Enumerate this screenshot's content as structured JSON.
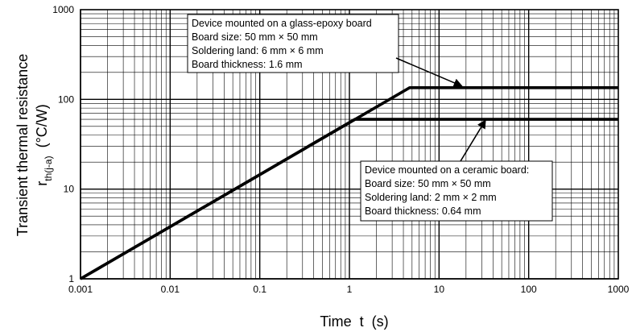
{
  "chart_data": {
    "type": "line",
    "x_scale": "log",
    "y_scale": "log",
    "xlim": [
      0.001,
      1000
    ],
    "ylim": [
      1,
      1000
    ],
    "grid": true,
    "xlabel": "Time  t  (s)",
    "ylabel": {
      "line1": "Transient thermal resistance",
      "main_symbol": "r",
      "subscript": "th(j-a)",
      "unit": "(°C/W)"
    },
    "x_tick_labels": [
      "0.001",
      "0.01",
      "0.1",
      "1",
      "10",
      "100",
      "1000"
    ],
    "y_tick_labels": [
      "1",
      "10",
      "100",
      "1000"
    ],
    "series": [
      {
        "x": [
          0.001,
          4.7,
          1000
        ],
        "y": [
          1,
          135,
          135
        ]
      },
      {
        "x": [
          0.001,
          1.15,
          1000
        ],
        "y": [
          1,
          60,
          60
        ]
      }
    ],
    "annotations": [
      {
        "lines": [
          "Device mounted on a glass-epoxy board",
          "Board size: 50 mm  ×  50 mm",
          "Soldering land: 6 mm  ×  6 mm",
          "Board thickness: 1.6 mm"
        ],
        "arrow_target": {
          "x": 18,
          "y": 135
        }
      },
      {
        "lines": [
          "Device mounted on a ceramic board:",
          "Board size: 50 mm  ×  50 mm",
          "Soldering land: 2 mm  ×  2 mm",
          "Board thickness: 0.64 mm"
        ],
        "arrow_target": {
          "x": 33,
          "y": 60
        }
      }
    ]
  }
}
